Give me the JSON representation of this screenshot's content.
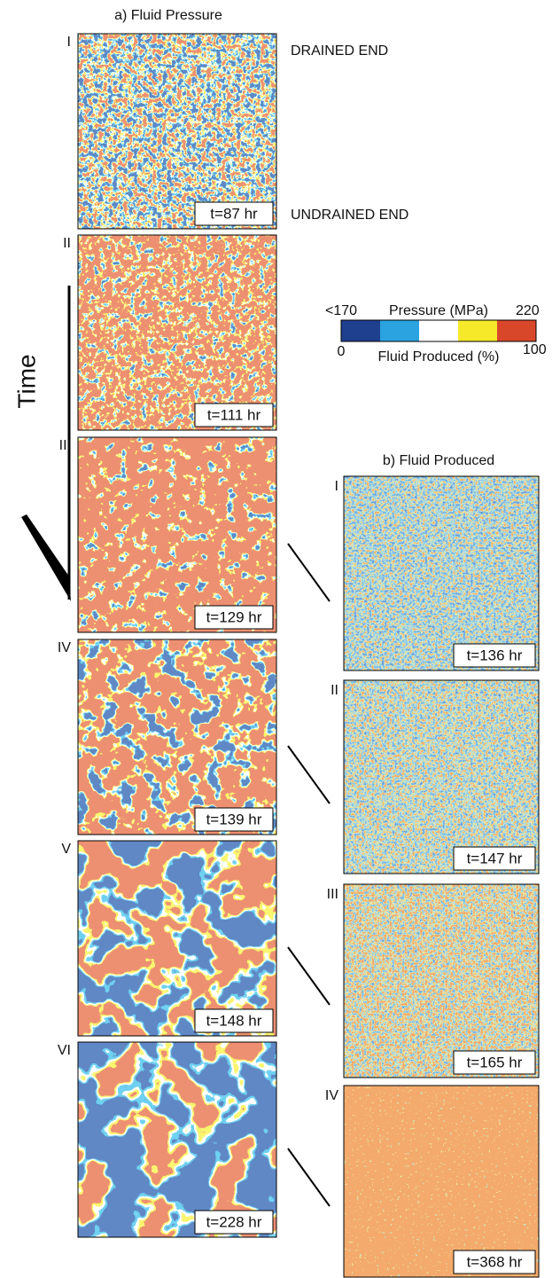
{
  "panel_a": {
    "title": "a) Fluid Pressure",
    "drained_label": "DRAINED END",
    "undrained_label": "UNDRAINED END",
    "time_arrow_label": "Time",
    "panels": [
      {
        "label": "I",
        "time": "t=87 hr"
      },
      {
        "label": "II",
        "time": "t=111 hr"
      },
      {
        "label": "III",
        "time": "t=129 hr"
      },
      {
        "label": "IV",
        "time": "t=139 hr"
      },
      {
        "label": "V",
        "time": "t=148 hr"
      },
      {
        "label": "VI",
        "time": "t=228 hr"
      }
    ]
  },
  "legend": {
    "pressure_title": "Pressure (MPa)",
    "pressure_min": "<170",
    "pressure_max": "220",
    "produced_title": "Fluid Produced (%)",
    "produced_min": "0",
    "produced_max": "100"
  },
  "panel_b": {
    "title": "b) Fluid Produced",
    "panels": [
      {
        "label": "I",
        "time": "t=136 hr"
      },
      {
        "label": "II",
        "time": "t=147 hr"
      },
      {
        "label": "III",
        "time": "t=165 hr"
      },
      {
        "label": "IV",
        "time": "t=368 hr"
      }
    ]
  }
}
